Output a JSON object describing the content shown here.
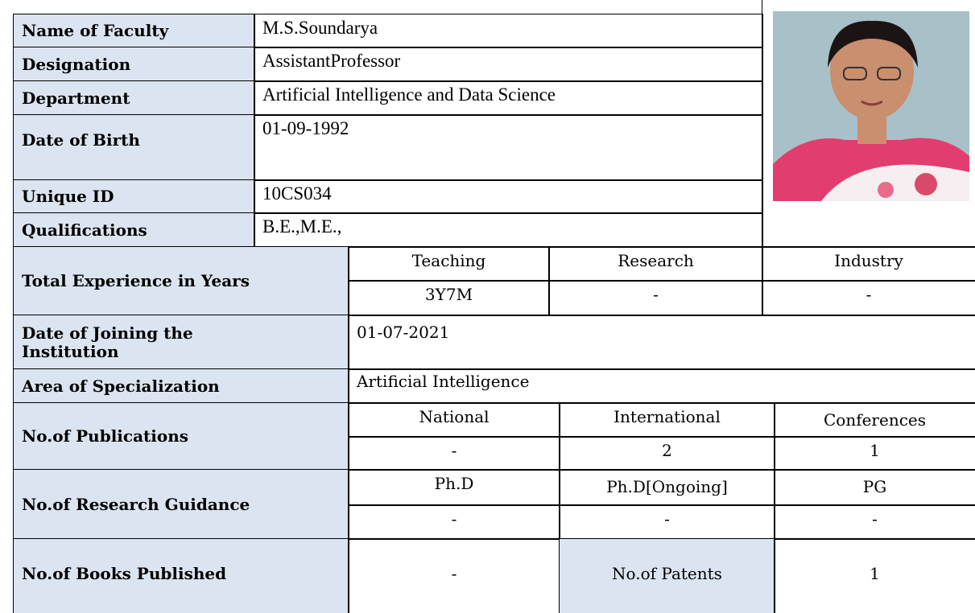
{
  "profile": {
    "rows": [
      [
        "Name of Faculty",
        "M.S.Soundarya"
      ],
      [
        "Designation",
        "AssistantProfessor"
      ],
      [
        "Department",
        "Artificial Intelligence and Data Science"
      ],
      [
        "Date of Birth",
        "01-09-1992"
      ],
      [
        "Unique ID",
        "10CS034"
      ],
      [
        "Qualifications",
        "B.E.,M.E.,"
      ]
    ],
    "experience": {
      "label": "Total Experience in Years",
      "headers": [
        "Teaching",
        "Research",
        "Industry"
      ],
      "values": [
        "3Y7M",
        "-",
        "-"
      ]
    },
    "joining": {
      "label": "Date of Joining the Institution",
      "value": "01-07-2021"
    },
    "specialization": {
      "label": "Area of Specialization",
      "value": "Artificial Intelligence"
    },
    "publications": {
      "label": "No.of Publications",
      "headers": [
        "National",
        "International",
        "Conferences"
      ],
      "values": [
        "-",
        "2",
        "1"
      ]
    },
    "guidance": {
      "label": "No.of Research Guidance",
      "headers": [
        "Ph.D",
        "Ph.D[Ongoing]",
        "PG"
      ],
      "values": [
        "-",
        "-",
        "-"
      ]
    },
    "books": {
      "label": "No.of Books Published",
      "value": "-",
      "patents_label": "No.of Patents",
      "patents_value": "1"
    }
  }
}
